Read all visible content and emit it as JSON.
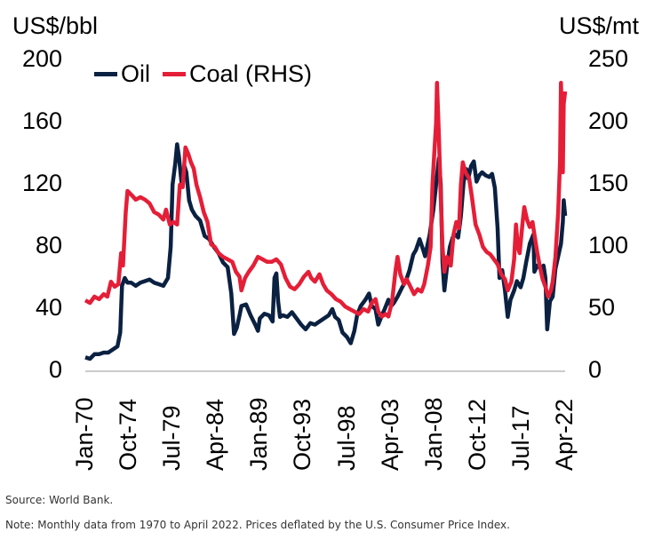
{
  "chart_data": {
    "type": "line",
    "left_axis_label": "US$/bbl",
    "right_axis_label": "US$/mt",
    "ylim_left": [
      0,
      200
    ],
    "ylim_right": [
      0,
      250
    ],
    "yticks_left": [
      "0",
      "40",
      "80",
      "120",
      "160",
      "200"
    ],
    "yticks_right": [
      "0",
      "50",
      "100",
      "150",
      "200",
      "250"
    ],
    "x_range": [
      1970.0,
      2022.25
    ],
    "xticks": [
      {
        "label": "Jan-70",
        "x": 1970.0
      },
      {
        "label": "Oct-74",
        "x": 1974.75
      },
      {
        "label": "Jul-79",
        "x": 1979.5
      },
      {
        "label": "Apr-84",
        "x": 1984.25
      },
      {
        "label": "Jan-89",
        "x": 1989.0
      },
      {
        "label": "Oct-93",
        "x": 1993.75
      },
      {
        "label": "Jul-98",
        "x": 1998.5
      },
      {
        "label": "Apr-03",
        "x": 2003.25
      },
      {
        "label": "Jan-08",
        "x": 2008.0
      },
      {
        "label": "Oct-12",
        "x": 2012.75
      },
      {
        "label": "Jul-17",
        "x": 2017.5
      },
      {
        "label": "Apr-22",
        "x": 2022.25
      }
    ],
    "series": [
      {
        "name": "Oil",
        "axis": "left",
        "color": "#0b2142",
        "points": [
          [
            1970.0,
            9
          ],
          [
            1970.5,
            8
          ],
          [
            1971.0,
            11
          ],
          [
            1971.5,
            11
          ],
          [
            1972.0,
            12
          ],
          [
            1972.5,
            12
          ],
          [
            1973.0,
            14
          ],
          [
            1973.5,
            16
          ],
          [
            1973.8,
            25
          ],
          [
            1974.0,
            55
          ],
          [
            1974.3,
            60
          ],
          [
            1974.6,
            57
          ],
          [
            1975.0,
            57
          ],
          [
            1975.5,
            55
          ],
          [
            1976.0,
            57
          ],
          [
            1976.5,
            58
          ],
          [
            1977.0,
            59
          ],
          [
            1977.5,
            57
          ],
          [
            1978.0,
            56
          ],
          [
            1978.5,
            55
          ],
          [
            1979.0,
            60
          ],
          [
            1979.3,
            80
          ],
          [
            1979.5,
            120
          ],
          [
            1979.8,
            134
          ],
          [
            1980.0,
            146
          ],
          [
            1980.2,
            138
          ],
          [
            1980.5,
            120
          ],
          [
            1980.8,
            132
          ],
          [
            1981.0,
            128
          ],
          [
            1981.3,
            110
          ],
          [
            1981.6,
            104
          ],
          [
            1982.0,
            100
          ],
          [
            1982.5,
            97
          ],
          [
            1983.0,
            87
          ],
          [
            1983.5,
            85
          ],
          [
            1984.0,
            80
          ],
          [
            1984.5,
            76
          ],
          [
            1985.0,
            70
          ],
          [
            1985.5,
            67
          ],
          [
            1985.9,
            50
          ],
          [
            1986.2,
            24
          ],
          [
            1986.5,
            28
          ],
          [
            1986.8,
            36
          ],
          [
            1987.0,
            42
          ],
          [
            1987.5,
            43
          ],
          [
            1988.0,
            36
          ],
          [
            1988.5,
            30
          ],
          [
            1988.8,
            26
          ],
          [
            1989.0,
            34
          ],
          [
            1989.5,
            37
          ],
          [
            1990.0,
            36
          ],
          [
            1990.4,
            32
          ],
          [
            1990.6,
            60
          ],
          [
            1990.8,
            63
          ],
          [
            1991.0,
            45
          ],
          [
            1991.2,
            35
          ],
          [
            1991.5,
            36
          ],
          [
            1992.0,
            35
          ],
          [
            1992.5,
            38
          ],
          [
            1993.0,
            34
          ],
          [
            1993.5,
            30
          ],
          [
            1994.0,
            27
          ],
          [
            1994.5,
            31
          ],
          [
            1995.0,
            30
          ],
          [
            1995.5,
            32
          ],
          [
            1996.0,
            34
          ],
          [
            1996.5,
            36
          ],
          [
            1996.9,
            40
          ],
          [
            1997.2,
            35
          ],
          [
            1997.6,
            33
          ],
          [
            1998.0,
            25
          ],
          [
            1998.5,
            22
          ],
          [
            1998.9,
            18
          ],
          [
            1999.3,
            26
          ],
          [
            1999.6,
            36
          ],
          [
            2000.0,
            42
          ],
          [
            2000.5,
            46
          ],
          [
            2000.9,
            50
          ],
          [
            2001.2,
            42
          ],
          [
            2001.6,
            40
          ],
          [
            2001.9,
            30
          ],
          [
            2002.3,
            36
          ],
          [
            2002.6,
            40
          ],
          [
            2003.0,
            46
          ],
          [
            2003.3,
            42
          ],
          [
            2003.6,
            44
          ],
          [
            2004.0,
            48
          ],
          [
            2004.5,
            54
          ],
          [
            2004.9,
            58
          ],
          [
            2005.3,
            65
          ],
          [
            2005.7,
            75
          ],
          [
            2006.0,
            78
          ],
          [
            2006.4,
            85
          ],
          [
            2006.8,
            78
          ],
          [
            2007.0,
            74
          ],
          [
            2007.5,
            88
          ],
          [
            2007.9,
            104
          ],
          [
            2008.2,
            120
          ],
          [
            2008.5,
            137
          ],
          [
            2008.7,
            120
          ],
          [
            2008.9,
            70
          ],
          [
            2009.1,
            52
          ],
          [
            2009.4,
            68
          ],
          [
            2009.7,
            80
          ],
          [
            2010.0,
            86
          ],
          [
            2010.3,
            88
          ],
          [
            2010.6,
            86
          ],
          [
            2010.9,
            100
          ],
          [
            2011.2,
            122
          ],
          [
            2011.5,
            130
          ],
          [
            2011.7,
            124
          ],
          [
            2012.0,
            132
          ],
          [
            2012.3,
            135
          ],
          [
            2012.6,
            122
          ],
          [
            2012.9,
            126
          ],
          [
            2013.2,
            128
          ],
          [
            2013.6,
            126
          ],
          [
            2014.0,
            125
          ],
          [
            2014.3,
            127
          ],
          [
            2014.6,
            118
          ],
          [
            2014.9,
            92
          ],
          [
            2015.1,
            60
          ],
          [
            2015.4,
            65
          ],
          [
            2015.7,
            52
          ],
          [
            2016.0,
            35
          ],
          [
            2016.3,
            46
          ],
          [
            2016.7,
            52
          ],
          [
            2017.0,
            58
          ],
          [
            2017.4,
            54
          ],
          [
            2017.7,
            60
          ],
          [
            2018.0,
            70
          ],
          [
            2018.4,
            82
          ],
          [
            2018.8,
            88
          ],
          [
            2018.9,
            64
          ],
          [
            2019.2,
            68
          ],
          [
            2019.6,
            66
          ],
          [
            2019.9,
            68
          ],
          [
            2020.1,
            60
          ],
          [
            2020.3,
            27
          ],
          [
            2020.6,
            45
          ],
          [
            2020.9,
            48
          ],
          [
            2021.2,
            66
          ],
          [
            2021.5,
            74
          ],
          [
            2021.8,
            82
          ],
          [
            2022.0,
            96
          ],
          [
            2022.1,
            110
          ],
          [
            2022.25,
            100
          ]
        ]
      },
      {
        "name": "Coal (RHS)",
        "axis": "right",
        "color": "#e51e37",
        "points": [
          [
            1970.0,
            57
          ],
          [
            1970.5,
            55
          ],
          [
            1971.0,
            60
          ],
          [
            1971.5,
            58
          ],
          [
            1972.0,
            62
          ],
          [
            1972.4,
            60
          ],
          [
            1972.8,
            72
          ],
          [
            1973.2,
            68
          ],
          [
            1973.6,
            70
          ],
          [
            1973.9,
            95
          ],
          [
            1974.1,
            85
          ],
          [
            1974.4,
            128
          ],
          [
            1974.6,
            145
          ],
          [
            1975.0,
            142
          ],
          [
            1975.5,
            138
          ],
          [
            1976.0,
            140
          ],
          [
            1976.5,
            138
          ],
          [
            1977.0,
            135
          ],
          [
            1977.5,
            128
          ],
          [
            1978.0,
            126
          ],
          [
            1978.5,
            122
          ],
          [
            1978.8,
            130
          ],
          [
            1979.2,
            118
          ],
          [
            1979.6,
            120
          ],
          [
            1980.0,
            118
          ],
          [
            1980.3,
            150
          ],
          [
            1980.6,
            148
          ],
          [
            1980.9,
            180
          ],
          [
            1981.2,
            175
          ],
          [
            1981.5,
            168
          ],
          [
            1981.8,
            163
          ],
          [
            1982.1,
            150
          ],
          [
            1982.5,
            140
          ],
          [
            1982.9,
            128
          ],
          [
            1983.3,
            120
          ],
          [
            1983.7,
            102
          ],
          [
            1984.1,
            100
          ],
          [
            1984.5,
            95
          ],
          [
            1985.0,
            92
          ],
          [
            1985.5,
            90
          ],
          [
            1986.0,
            88
          ],
          [
            1986.4,
            80
          ],
          [
            1986.8,
            76
          ],
          [
            1987.0,
            65
          ],
          [
            1987.4,
            75
          ],
          [
            1987.8,
            80
          ],
          [
            1988.3,
            85
          ],
          [
            1988.8,
            92
          ],
          [
            1989.3,
            90
          ],
          [
            1989.8,
            88
          ],
          [
            1990.3,
            88
          ],
          [
            1990.8,
            90
          ],
          [
            1991.3,
            86
          ],
          [
            1991.8,
            75
          ],
          [
            1992.3,
            68
          ],
          [
            1992.8,
            66
          ],
          [
            1993.3,
            70
          ],
          [
            1993.8,
            76
          ],
          [
            1994.3,
            80
          ],
          [
            1994.6,
            75
          ],
          [
            1995.0,
            72
          ],
          [
            1995.5,
            78
          ],
          [
            1995.9,
            70
          ],
          [
            1996.3,
            65
          ],
          [
            1996.8,
            62
          ],
          [
            1997.3,
            58
          ],
          [
            1997.8,
            56
          ],
          [
            1998.3,
            52
          ],
          [
            1998.8,
            50
          ],
          [
            1999.3,
            48
          ],
          [
            1999.8,
            46
          ],
          [
            2000.3,
            50
          ],
          [
            2000.8,
            48
          ],
          [
            2001.2,
            55
          ],
          [
            2001.6,
            58
          ],
          [
            2001.9,
            48
          ],
          [
            2002.3,
            44
          ],
          [
            2002.7,
            46
          ],
          [
            2003.0,
            44
          ],
          [
            2003.4,
            56
          ],
          [
            2003.8,
            82
          ],
          [
            2004.0,
            92
          ],
          [
            2004.3,
            78
          ],
          [
            2004.7,
            70
          ],
          [
            2005.0,
            74
          ],
          [
            2005.4,
            68
          ],
          [
            2005.8,
            62
          ],
          [
            2006.2,
            66
          ],
          [
            2006.6,
            64
          ],
          [
            2006.9,
            70
          ],
          [
            2007.3,
            85
          ],
          [
            2007.6,
            100
          ],
          [
            2007.8,
            150
          ],
          [
            2008.0,
            175
          ],
          [
            2008.2,
            200
          ],
          [
            2008.3,
            232
          ],
          [
            2008.5,
            190
          ],
          [
            2008.7,
            140
          ],
          [
            2008.9,
            100
          ],
          [
            2009.1,
            80
          ],
          [
            2009.4,
            92
          ],
          [
            2009.8,
            85
          ],
          [
            2010.1,
            110
          ],
          [
            2010.4,
            120
          ],
          [
            2010.7,
            115
          ],
          [
            2010.9,
            150
          ],
          [
            2011.1,
            168
          ],
          [
            2011.4,
            160
          ],
          [
            2011.8,
            155
          ],
          [
            2012.1,
            140
          ],
          [
            2012.5,
            118
          ],
          [
            2012.9,
            110
          ],
          [
            2013.3,
            100
          ],
          [
            2013.7,
            96
          ],
          [
            2014.1,
            94
          ],
          [
            2014.5,
            90
          ],
          [
            2014.9,
            86
          ],
          [
            2015.3,
            78
          ],
          [
            2015.7,
            74
          ],
          [
            2016.0,
            65
          ],
          [
            2016.4,
            72
          ],
          [
            2016.7,
            90
          ],
          [
            2016.9,
            118
          ],
          [
            2017.1,
            100
          ],
          [
            2017.3,
            95
          ],
          [
            2017.6,
            118
          ],
          [
            2017.8,
            132
          ],
          [
            2018.1,
            122
          ],
          [
            2018.4,
            116
          ],
          [
            2018.7,
            120
          ],
          [
            2018.9,
            110
          ],
          [
            2019.2,
            96
          ],
          [
            2019.5,
            84
          ],
          [
            2019.8,
            74
          ],
          [
            2020.1,
            68
          ],
          [
            2020.4,
            60
          ],
          [
            2020.7,
            65
          ],
          [
            2020.9,
            72
          ],
          [
            2021.2,
            92
          ],
          [
            2021.5,
            128
          ],
          [
            2021.7,
            170
          ],
          [
            2021.8,
            232
          ],
          [
            2021.9,
            200
          ],
          [
            2022.0,
            160
          ],
          [
            2022.1,
            215
          ],
          [
            2022.25,
            225
          ]
        ]
      }
    ],
    "source_note": "Source: World Bank.",
    "note": "Note: Monthly data from 1970 to April 2022. Prices deflated by the U.S. Consumer Price Index."
  }
}
